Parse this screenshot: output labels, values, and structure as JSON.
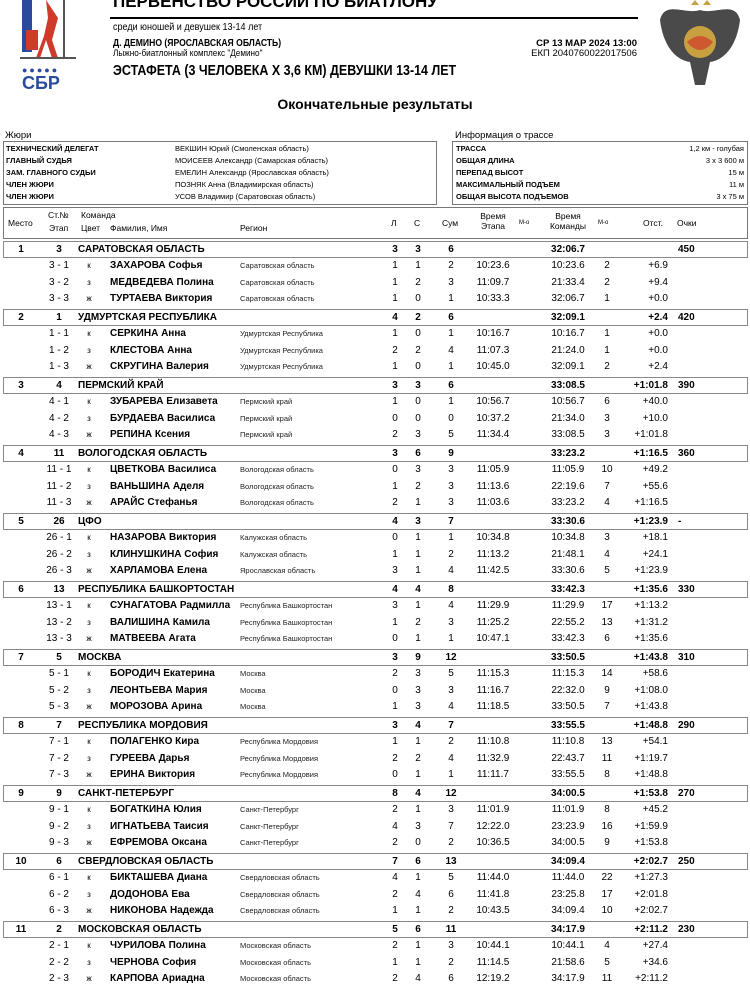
{
  "header": {
    "championship": "ПЕРВЕНСТВО РОССИИ ПО БИАТЛОНУ",
    "subtitle": "среди юношей и девушек 13-14 лет",
    "venue": "Д. ДЕМИНО (ЯРОСЛАВСКАЯ ОБЛАСТЬ)",
    "complex": "Лыжно-биатлонный комплекс \"Демино\"",
    "datetime": "СР 13 МАР 2024 13:00",
    "ekp": "ЕКП 2040760022017506",
    "event": "ЭСТАФЕТА (3 ЧЕЛОВЕКА Х 3,6 КМ) ДЕВУШКИ 13-14 ЛЕТ",
    "results_title": "Окончательные результаты",
    "logo_left": "СБР"
  },
  "jury": {
    "title": "Жюри",
    "rows": [
      {
        "role": "ТЕХНИЧЕСКИЙ ДЕЛЕГАТ",
        "name": "ВЕКШИН Юрий (Смоленская область)"
      },
      {
        "role": "ГЛАВНЫЙ СУДЬЯ",
        "name": "МОИСЕЕВ Александр (Самарская область)"
      },
      {
        "role": "ЗАМ. ГЛАВНОГО СУДЬИ",
        "name": "ЕМЕЛИН Александр (Ярославская область)"
      },
      {
        "role": "ЧЛЕН ЖЮРИ",
        "name": "ПОЗНЯК Анна (Владимирская область)"
      },
      {
        "role": "ЧЛЕН ЖЮРИ",
        "name": "УСОВ Владимир (Саратовская область)"
      }
    ]
  },
  "track": {
    "title": "Информация о трассе",
    "rows": [
      {
        "label": "ТРАССА",
        "value": "1,2 км - голубая"
      },
      {
        "label": "ОБЩАЯ ДЛИНА",
        "value": "3 х 3 600 м"
      },
      {
        "label": "ПЕРЕПАД ВЫСОТ",
        "value": "15 м"
      },
      {
        "label": "МАКСИМАЛЬНЫЙ ПОДЪЕМ",
        "value": "11 м"
      },
      {
        "label": "ОБЩАЯ ВЫСОТА ПОДЪЕМОВ",
        "value": "3 х 75 м"
      }
    ]
  },
  "columns": {
    "place": "Место",
    "bib": "Ст.№",
    "stage": "Этап",
    "team": "Команда",
    "color": "Цвет",
    "name": "Фамилия, Имя",
    "region": "Регион",
    "l": "Л",
    "s": "С",
    "sum": "Сум",
    "leg_time": "Время Этапа",
    "leg_rank": "М-о",
    "team_time": "Время Команды",
    "team_rank": "М-о",
    "behind": "Отст.",
    "points": "Очки"
  },
  "teams": [
    {
      "place": "1",
      "bib": "3",
      "name": "САРАТОВСКАЯ ОБЛАСТЬ",
      "l": "3",
      "s": "3",
      "sum": "6",
      "time": "32:06.7",
      "behind": "",
      "points": "450",
      "members": [
        [
          "3 - 1",
          "к",
          "ЗАХАРОВА Софья",
          "Саратовская область",
          "1",
          "1",
          "2",
          "10:23.6",
          "10:23.6",
          "2",
          "+6.9"
        ],
        [
          "3 - 2",
          "з",
          "МЕДВЕДЕВА Полина",
          "Саратовская область",
          "1",
          "2",
          "3",
          "11:09.7",
          "21:33.4",
          "2",
          "+9.4"
        ],
        [
          "3 - 3",
          "ж",
          "ТУРТАЕВА Виктория",
          "Саратовская область",
          "1",
          "0",
          "1",
          "10:33.3",
          "32:06.7",
          "1",
          "+0.0"
        ]
      ]
    },
    {
      "place": "2",
      "bib": "1",
      "name": "УДМУРТСКАЯ РЕСПУБЛИКА",
      "l": "4",
      "s": "2",
      "sum": "6",
      "time": "32:09.1",
      "behind": "+2.4",
      "points": "420",
      "members": [
        [
          "1 - 1",
          "к",
          "СЕРКИНА Анна",
          "Удмуртская Республика",
          "1",
          "0",
          "1",
          "10:16.7",
          "10:16.7",
          "1",
          "+0.0"
        ],
        [
          "1 - 2",
          "з",
          "КЛЕСТОВА Анна",
          "Удмуртская Республика",
          "2",
          "2",
          "4",
          "11:07.3",
          "21:24.0",
          "1",
          "+0.0"
        ],
        [
          "1 - 3",
          "ж",
          "СКРУГИНА Валерия",
          "Удмуртская Республика",
          "1",
          "0",
          "1",
          "10:45.0",
          "32:09.1",
          "2",
          "+2.4"
        ]
      ]
    },
    {
      "place": "3",
      "bib": "4",
      "name": "ПЕРМСКИЙ КРАЙ",
      "l": "3",
      "s": "3",
      "sum": "6",
      "time": "33:08.5",
      "behind": "+1:01.8",
      "points": "390",
      "members": [
        [
          "4 - 1",
          "к",
          "ЗУБАРЕВА Елизавета",
          "Пермский край",
          "1",
          "0",
          "1",
          "10:56.7",
          "10:56.7",
          "6",
          "+40.0"
        ],
        [
          "4 - 2",
          "з",
          "БУРДАЕВА Василиса",
          "Пермский край",
          "0",
          "0",
          "0",
          "10:37.2",
          "21:34.0",
          "3",
          "+10.0"
        ],
        [
          "4 - 3",
          "ж",
          "РЕПИНА Ксения",
          "Пермский край",
          "2",
          "3",
          "5",
          "11:34.4",
          "33:08.5",
          "3",
          "+1:01.8"
        ]
      ]
    },
    {
      "place": "4",
      "bib": "11",
      "name": "ВОЛОГОДСКАЯ ОБЛАСТЬ",
      "l": "3",
      "s": "6",
      "sum": "9",
      "time": "33:23.2",
      "behind": "+1:16.5",
      "points": "360",
      "members": [
        [
          "11 - 1",
          "к",
          "ЦВЕТКОВА Василиса",
          "Вологодская область",
          "0",
          "3",
          "3",
          "11:05.9",
          "11:05.9",
          "10",
          "+49.2"
        ],
        [
          "11 - 2",
          "з",
          "ВАНЬШИНА Аделя",
          "Вологодская область",
          "1",
          "2",
          "3",
          "11:13.6",
          "22:19.6",
          "7",
          "+55.6"
        ],
        [
          "11 - 3",
          "ж",
          "АРАЙС Стефанья",
          "Вологодская область",
          "2",
          "1",
          "3",
          "11:03.6",
          "33:23.2",
          "4",
          "+1:16.5"
        ]
      ]
    },
    {
      "place": "5",
      "bib": "26",
      "name": "ЦФО",
      "l": "4",
      "s": "3",
      "sum": "7",
      "time": "33:30.6",
      "behind": "+1:23.9",
      "points": "-",
      "members": [
        [
          "26 - 1",
          "к",
          "НАЗАРОВА Виктория",
          "Калужская область",
          "0",
          "1",
          "1",
          "10:34.8",
          "10:34.8",
          "3",
          "+18.1"
        ],
        [
          "26 - 2",
          "з",
          "КЛИНУШКИНА София",
          "Калужская область",
          "1",
          "1",
          "2",
          "11:13.2",
          "21:48.1",
          "4",
          "+24.1"
        ],
        [
          "26 - 3",
          "ж",
          "ХАРЛАМОВА Елена",
          "Ярославская область",
          "3",
          "1",
          "4",
          "11:42.5",
          "33:30.6",
          "5",
          "+1:23.9"
        ]
      ]
    },
    {
      "place": "6",
      "bib": "13",
      "name": "РЕСПУБЛИКА БАШКОРТОСТАН",
      "l": "4",
      "s": "4",
      "sum": "8",
      "time": "33:42.3",
      "behind": "+1:35.6",
      "points": "330",
      "members": [
        [
          "13 - 1",
          "к",
          "СУНАГАТОВА Радмилла",
          "Республика Башкортостан",
          "3",
          "1",
          "4",
          "11:29.9",
          "11:29.9",
          "17",
          "+1:13.2"
        ],
        [
          "13 - 2",
          "з",
          "ВАЛИШИНА Камила",
          "Республика Башкортостан",
          "1",
          "2",
          "3",
          "11:25.2",
          "22:55.2",
          "13",
          "+1:31.2"
        ],
        [
          "13 - 3",
          "ж",
          "МАТВЕЕВА Агата",
          "Республика Башкортостан",
          "0",
          "1",
          "1",
          "10:47.1",
          "33:42.3",
          "6",
          "+1:35.6"
        ]
      ]
    },
    {
      "place": "7",
      "bib": "5",
      "name": "МОСКВА",
      "l": "3",
      "s": "9",
      "sum": "12",
      "time": "33:50.5",
      "behind": "+1:43.8",
      "points": "310",
      "members": [
        [
          "5 - 1",
          "к",
          "БОРОДИЧ Екатерина",
          "Москва",
          "2",
          "3",
          "5",
          "11:15.3",
          "11:15.3",
          "14",
          "+58.6"
        ],
        [
          "5 - 2",
          "з",
          "ЛЕОНТЬЕВА Мария",
          "Москва",
          "0",
          "3",
          "3",
          "11:16.7",
          "22:32.0",
          "9",
          "+1:08.0"
        ],
        [
          "5 - 3",
          "ж",
          "МОРОЗОВА Арина",
          "Москва",
          "1",
          "3",
          "4",
          "11:18.5",
          "33:50.5",
          "7",
          "+1:43.8"
        ]
      ]
    },
    {
      "place": "8",
      "bib": "7",
      "name": "РЕСПУБЛИКА МОРДОВИЯ",
      "l": "3",
      "s": "4",
      "sum": "7",
      "time": "33:55.5",
      "behind": "+1:48.8",
      "points": "290",
      "members": [
        [
          "7 - 1",
          "к",
          "ПОЛАГЕНКО Кира",
          "Республика Мордовия",
          "1",
          "1",
          "2",
          "11:10.8",
          "11:10.8",
          "13",
          "+54.1"
        ],
        [
          "7 - 2",
          "з",
          "ГУРЕЕВА Дарья",
          "Республика Мордовия",
          "2",
          "2",
          "4",
          "11:32.9",
          "22:43.7",
          "11",
          "+1:19.7"
        ],
        [
          "7 - 3",
          "ж",
          "ЕРИНА Виктория",
          "Республика Мордовия",
          "0",
          "1",
          "1",
          "11:11.7",
          "33:55.5",
          "8",
          "+1:48.8"
        ]
      ]
    },
    {
      "place": "9",
      "bib": "9",
      "name": "САНКТ-ПЕТЕРБУРГ",
      "l": "8",
      "s": "4",
      "sum": "12",
      "time": "34:00.5",
      "behind": "+1:53.8",
      "points": "270",
      "members": [
        [
          "9 - 1",
          "к",
          "БОГАТКИНА Юлия",
          "Санкт-Петербург",
          "2",
          "1",
          "3",
          "11:01.9",
          "11:01.9",
          "8",
          "+45.2"
        ],
        [
          "9 - 2",
          "з",
          "ИГНАТЬЕВА Таисия",
          "Санкт-Петербург",
          "4",
          "3",
          "7",
          "12:22.0",
          "23:23.9",
          "16",
          "+1:59.9"
        ],
        [
          "9 - 3",
          "ж",
          "ЕФРЕМОВА Оксана",
          "Санкт-Петербург",
          "2",
          "0",
          "2",
          "10:36.5",
          "34:00.5",
          "9",
          "+1:53.8"
        ]
      ]
    },
    {
      "place": "10",
      "bib": "6",
      "name": "СВЕРДЛОВСКАЯ ОБЛАСТЬ",
      "l": "7",
      "s": "6",
      "sum": "13",
      "time": "34:09.4",
      "behind": "+2:02.7",
      "points": "250",
      "members": [
        [
          "6 - 1",
          "к",
          "БИКТАШЕВА Диана",
          "Свердловская область",
          "4",
          "1",
          "5",
          "11:44.0",
          "11:44.0",
          "22",
          "+1:27.3"
        ],
        [
          "6 - 2",
          "з",
          "ДОДОНОВА Ева",
          "Свердловская область",
          "2",
          "4",
          "6",
          "11:41.8",
          "23:25.8",
          "17",
          "+2:01.8"
        ],
        [
          "6 - 3",
          "ж",
          "НИКОНОВА Надежда",
          "Свердловская область",
          "1",
          "1",
          "2",
          "10:43.5",
          "34:09.4",
          "10",
          "+2:02.7"
        ]
      ]
    },
    {
      "place": "11",
      "bib": "2",
      "name": "МОСКОВСКАЯ ОБЛАСТЬ",
      "l": "5",
      "s": "6",
      "sum": "11",
      "time": "34:17.9",
      "behind": "+2:11.2",
      "points": "230",
      "members": [
        [
          "2 - 1",
          "к",
          "ЧУРИЛОВА Полина",
          "Московская область",
          "2",
          "1",
          "3",
          "10:44.1",
          "10:44.1",
          "4",
          "+27.4"
        ],
        [
          "2 - 2",
          "з",
          "ЧЕРНОВА София",
          "Московская область",
          "1",
          "1",
          "2",
          "11:14.5",
          "21:58.6",
          "5",
          "+34.6"
        ],
        [
          "2 - 3",
          "ж",
          "КАРПОВА Ариадна",
          "Московская область",
          "2",
          "4",
          "6",
          "12:19.2",
          "34:17.9",
          "11",
          "+2:11.2"
        ]
      ]
    }
  ],
  "colors": {
    "border": "#888888",
    "flag_blue": "#2a4a9c",
    "flag_red": "#d03a2a",
    "logo_blue": "#2a4a9c"
  }
}
